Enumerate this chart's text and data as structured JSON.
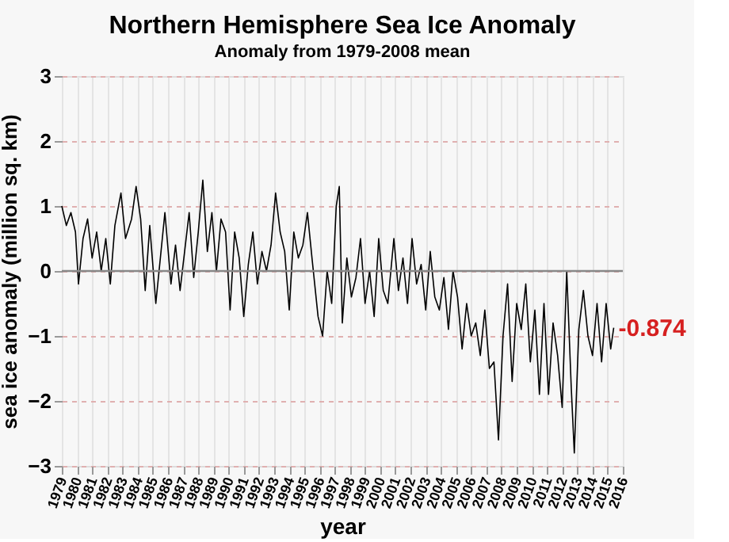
{
  "chart_data": {
    "type": "line",
    "title": "Northern Hemisphere Sea Ice Anomaly",
    "subtitle": "Anomaly from 1979-2008 mean",
    "xlabel": "year",
    "ylabel": "sea ice anomaly (million sq. km)",
    "series": [
      {
        "color": "#000000",
        "x": [
          1979.0,
          1979.3,
          1979.6,
          1979.9,
          1980.1,
          1980.4,
          1980.7,
          1981.0,
          1981.3,
          1981.6,
          1981.9,
          1982.2,
          1982.5,
          1982.9,
          1983.2,
          1983.6,
          1983.9,
          1984.2,
          1984.5,
          1984.8,
          1985.2,
          1985.5,
          1985.8,
          1986.2,
          1986.5,
          1986.8,
          1987.1,
          1987.4,
          1987.7,
          1988.0,
          1988.3,
          1988.6,
          1988.9,
          1989.2,
          1989.5,
          1989.8,
          1990.1,
          1990.4,
          1990.7,
          1991.0,
          1991.3,
          1991.6,
          1991.9,
          1992.2,
          1992.5,
          1992.8,
          1993.1,
          1993.4,
          1993.7,
          1994.0,
          1994.3,
          1994.6,
          1994.9,
          1995.2,
          1995.5,
          1995.9,
          1996.2,
          1996.5,
          1996.8,
          1997.1,
          1997.3,
          1997.5,
          1997.8,
          1998.1,
          1998.4,
          1998.7,
          1999.0,
          1999.3,
          1999.6,
          1999.9,
          2000.2,
          2000.5,
          2000.9,
          2001.2,
          2001.5,
          2001.8,
          2002.1,
          2002.4,
          2002.7,
          2003.0,
          2003.3,
          2003.6,
          2003.9,
          2004.2,
          2004.5,
          2004.8,
          2005.1,
          2005.4,
          2005.7,
          2006.0,
          2006.3,
          2006.6,
          2006.9,
          2007.2,
          2007.5,
          2007.8,
          2008.1,
          2008.4,
          2008.7,
          2009.0,
          2009.3,
          2009.6,
          2009.9,
          2010.2,
          2010.5,
          2010.8,
          2011.1,
          2011.4,
          2011.7,
          2012.0,
          2012.3,
          2012.6,
          2012.8,
          2013.1,
          2013.4,
          2013.7,
          2014.0,
          2014.3,
          2014.6,
          2014.9,
          2015.2,
          2015.4
        ],
        "values": [
          1.0,
          0.7,
          0.9,
          0.6,
          -0.2,
          0.5,
          0.8,
          0.2,
          0.6,
          0.0,
          0.5,
          -0.2,
          0.7,
          1.2,
          0.5,
          0.8,
          1.3,
          0.8,
          -0.3,
          0.7,
          -0.5,
          0.2,
          0.9,
          -0.2,
          0.4,
          -0.3,
          0.3,
          0.9,
          -0.1,
          0.6,
          1.4,
          0.3,
          0.9,
          0.0,
          0.8,
          0.6,
          -0.6,
          0.6,
          0.2,
          -0.7,
          0.1,
          0.6,
          -0.2,
          0.3,
          0.0,
          0.4,
          1.2,
          0.6,
          0.3,
          -0.6,
          0.6,
          0.2,
          0.4,
          0.9,
          0.2,
          -0.7,
          -1.0,
          0.0,
          -0.5,
          1.0,
          1.3,
          -0.8,
          0.2,
          -0.4,
          -0.1,
          0.5,
          -0.5,
          0.0,
          -0.7,
          0.5,
          -0.3,
          -0.5,
          0.5,
          -0.3,
          0.2,
          -0.5,
          0.5,
          -0.2,
          0.1,
          -0.6,
          0.3,
          -0.4,
          -0.6,
          -0.1,
          -0.9,
          0.0,
          -0.4,
          -1.2,
          -0.5,
          -1.0,
          -0.8,
          -1.3,
          -0.6,
          -1.5,
          -1.4,
          -2.6,
          -1.0,
          -0.2,
          -1.7,
          -0.5,
          -0.9,
          -0.2,
          -1.4,
          -0.6,
          -1.9,
          -0.5,
          -1.9,
          -0.8,
          -1.3,
          -2.1,
          0.0,
          -1.8,
          -2.8,
          -0.9,
          -0.3,
          -1.0,
          -1.3,
          -0.5,
          -1.4,
          -0.5,
          -1.2,
          -0.874
        ]
      }
    ],
    "xlim": [
      1979,
      2016
    ],
    "xticks": [
      1979,
      1980,
      1981,
      1982,
      1983,
      1984,
      1985,
      1986,
      1987,
      1988,
      1989,
      1990,
      1991,
      1992,
      1993,
      1994,
      1995,
      1996,
      1997,
      1998,
      1999,
      2000,
      2001,
      2002,
      2003,
      2004,
      2005,
      2006,
      2007,
      2008,
      2009,
      2010,
      2011,
      2012,
      2013,
      2014,
      2015,
      2016
    ],
    "ylim": [
      -3,
      3
    ],
    "yticks": [
      -3,
      -2,
      -1,
      0,
      1,
      2,
      3
    ],
    "grid": true,
    "marker": "none",
    "line_style": "solid",
    "ref_lines": [
      {
        "axis": "y",
        "value": 0,
        "color": "#888888"
      }
    ],
    "annotations": [
      {
        "text": "-0.874",
        "x": 2015.4,
        "y": -0.874
      }
    ]
  }
}
